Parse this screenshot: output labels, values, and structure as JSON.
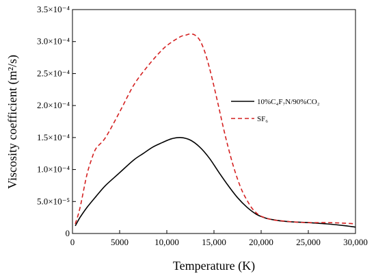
{
  "chart_data": {
    "type": "line",
    "title": "",
    "xlabel": "Temperature (K)",
    "ylabel": "Viscosity coefficient (m²/s)",
    "xlim": [
      0,
      30000
    ],
    "ylim": [
      0,
      0.00035
    ],
    "x_ticks": [
      {
        "value": 0,
        "label": "0"
      },
      {
        "value": 5000,
        "label": "5000"
      },
      {
        "value": 10000,
        "label": "10,000"
      },
      {
        "value": 15000,
        "label": "15,000"
      },
      {
        "value": 20000,
        "label": "20,000"
      },
      {
        "value": 25000,
        "label": "25,000"
      },
      {
        "value": 30000,
        "label": "30,000"
      }
    ],
    "y_ticks": [
      {
        "value": 0,
        "label": "0"
      },
      {
        "value": 5e-05,
        "label": "5.0×10⁻⁵"
      },
      {
        "value": 0.0001,
        "label": "1.0×10⁻⁴"
      },
      {
        "value": 0.00015,
        "label": "1.5×10⁻⁴"
      },
      {
        "value": 0.0002,
        "label": "2.0×10⁻⁴"
      },
      {
        "value": 0.00025,
        "label": "2.5×10⁻⁴"
      },
      {
        "value": 0.0003,
        "label": "3.0×10⁻⁴"
      },
      {
        "value": 0.00035,
        "label": "3.5×10⁻⁴"
      }
    ],
    "grid": false,
    "legend_position": "right",
    "series": [
      {
        "name": "10%C₄F₇N/90%CO₂",
        "color": "#000000",
        "style": "solid",
        "x": [
          300,
          800,
          1500,
          2500,
          3500,
          5000,
          6500,
          7500,
          8500,
          9500,
          10500,
          11500,
          12500,
          13500,
          14500,
          15500,
          16500,
          17500,
          18500,
          19500,
          20500,
          21500,
          22500,
          23500,
          25000,
          27000,
          29000,
          30000
        ],
        "y": [
          1.2e-05,
          2.5e-05,
          4e-05,
          5.8e-05,
          7.5e-05,
          9.5e-05,
          0.000115,
          0.000125,
          0.000135,
          0.000142,
          0.000148,
          0.00015,
          0.000146,
          0.000135,
          0.000118,
          9.6e-05,
          7.5e-05,
          5.6e-05,
          4.1e-05,
          3e-05,
          2.4e-05,
          2.1e-05,
          1.9e-05,
          1.8e-05,
          1.7e-05,
          1.5e-05,
          1.2e-05,
          1e-05
        ]
      },
      {
        "name": "SF₆",
        "color": "#d42020",
        "style": "dashed",
        "x": [
          300,
          800,
          1500,
          2000,
          2500,
          3500,
          5000,
          6500,
          8000,
          9500,
          10500,
          11500,
          12000,
          12500,
          13000,
          13500,
          14000,
          14500,
          15000,
          15500,
          16000,
          16500,
          17000,
          17500,
          18000,
          18500,
          19000,
          19500,
          20000,
          21000,
          22000,
          23500,
          25000,
          27000,
          29000,
          30000
        ],
        "y": [
          1.5e-05,
          4e-05,
          9e-05,
          0.000115,
          0.000133,
          0.00015,
          0.00019,
          0.000232,
          0.000262,
          0.000287,
          0.000299,
          0.000308,
          0.00031,
          0.000312,
          0.00031,
          0.000302,
          0.000285,
          0.00026,
          0.00023,
          0.000198,
          0.000165,
          0.000135,
          0.000108,
          8.5e-05,
          6.6e-05,
          5.2e-05,
          4e-05,
          3.2e-05,
          2.7e-05,
          2.2e-05,
          2e-05,
          1.8e-05,
          1.7e-05,
          1.7e-05,
          1.6e-05,
          1.5e-05
        ]
      }
    ]
  }
}
